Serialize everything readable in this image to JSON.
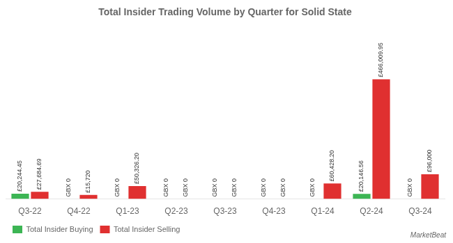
{
  "chart_data": {
    "type": "bar",
    "title": "Total Insider Trading Volume by Quarter for Solid State",
    "categories": [
      "Q3-22",
      "Q4-22",
      "Q1-23",
      "Q2-23",
      "Q3-23",
      "Q4-23",
      "Q1-24",
      "Q2-24",
      "Q3-24"
    ],
    "series": [
      {
        "name": "Total Insider Buying",
        "color": "#3cb554",
        "values": [
          20244.45,
          0,
          0,
          0,
          0,
          0,
          0,
          20146.56,
          0
        ],
        "value_labels": [
          "£20,244.45",
          "GBX 0",
          "GBX 0",
          "GBX 0",
          "GBX 0",
          "GBX 0",
          "GBX 0",
          "£20,146.56",
          "GBX 0"
        ]
      },
      {
        "name": "Total Insider Selling",
        "color": "#e03030",
        "values": [
          27684.69,
          15720,
          50326.2,
          0,
          0,
          0,
          60428.2,
          466009.95,
          96000
        ],
        "value_labels": [
          "£27,684.69",
          "£15,720",
          "£50,326.20",
          "GBX 0",
          "GBX 0",
          "GBX 0",
          "£60,428.20",
          "£466,009.95",
          "£96,000"
        ]
      }
    ],
    "ylim": [
      0,
      675714.4275
    ],
    "data_labels": true,
    "tick_labels": "x",
    "grid": false,
    "legend": "lower left",
    "annotations": [
      "MarketBeat"
    ]
  }
}
